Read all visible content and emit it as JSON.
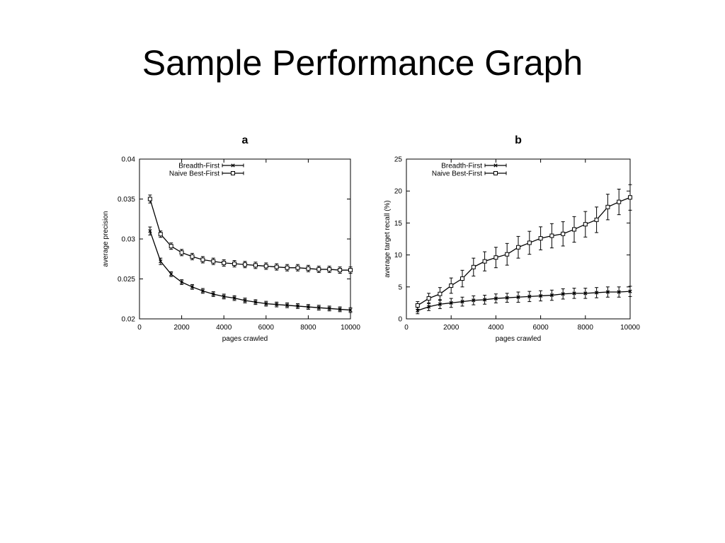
{
  "slide": {
    "title": "Sample Performance Graph"
  },
  "chart_data": [
    {
      "type": "line",
      "title": "a",
      "xlabel": "pages crawled",
      "ylabel": "average precision",
      "xlim": [
        0,
        10000
      ],
      "ylim": [
        0.02,
        0.04
      ],
      "xticks": [
        0,
        2000,
        4000,
        6000,
        8000,
        10000
      ],
      "yticks": [
        0.02,
        0.025,
        0.03,
        0.035,
        0.04
      ],
      "xtick_labels": [
        "0",
        "2000",
        "4000",
        "6000",
        "8000",
        "10000"
      ],
      "ytick_labels": [
        "0.02",
        "0.025",
        "0.03",
        "0.035",
        "0.04"
      ],
      "legend": "top-right",
      "grid": false,
      "x": [
        500,
        1000,
        1500,
        2000,
        2500,
        3000,
        3500,
        4000,
        4500,
        5000,
        5500,
        6000,
        6500,
        7000,
        7500,
        8000,
        8500,
        9000,
        9500,
        10000
      ],
      "series": [
        {
          "name": "Breadth-First",
          "marker": "x",
          "values": [
            0.031,
            0.0272,
            0.0256,
            0.0246,
            0.024,
            0.0235,
            0.0231,
            0.0228,
            0.0226,
            0.0223,
            0.0221,
            0.0219,
            0.0218,
            0.0217,
            0.0216,
            0.0215,
            0.0214,
            0.0213,
            0.0212,
            0.0211
          ],
          "errors": [
            0.0005,
            0.0004,
            0.0003,
            0.0003,
            0.0003,
            0.0003,
            0.0003,
            0.0003,
            0.0003,
            0.0003,
            0.0003,
            0.0003,
            0.0003,
            0.0003,
            0.0003,
            0.0003,
            0.0003,
            0.0003,
            0.0003,
            0.0003
          ]
        },
        {
          "name": "Naive Best-First",
          "marker": "square",
          "values": [
            0.035,
            0.0306,
            0.0291,
            0.0283,
            0.0278,
            0.0274,
            0.0272,
            0.027,
            0.0269,
            0.0268,
            0.0267,
            0.0266,
            0.0265,
            0.0264,
            0.0264,
            0.0263,
            0.0262,
            0.0262,
            0.0261,
            0.0261
          ],
          "errors": [
            0.0005,
            0.0004,
            0.0004,
            0.0004,
            0.0004,
            0.0004,
            0.0004,
            0.0004,
            0.0004,
            0.0004,
            0.0004,
            0.0004,
            0.0004,
            0.0004,
            0.0004,
            0.0004,
            0.0004,
            0.0004,
            0.0004,
            0.0004
          ]
        }
      ]
    },
    {
      "type": "line",
      "title": "b",
      "xlabel": "pages crawled",
      "ylabel": "average target recall (%)",
      "xlim": [
        0,
        10000
      ],
      "ylim": [
        0,
        25
      ],
      "xticks": [
        0,
        2000,
        4000,
        6000,
        8000,
        10000
      ],
      "yticks": [
        0,
        5,
        10,
        15,
        20,
        25
      ],
      "xtick_labels": [
        "0",
        "2000",
        "4000",
        "6000",
        "8000",
        "10000"
      ],
      "ytick_labels": [
        "0",
        "5",
        "10",
        "15",
        "20",
        "25"
      ],
      "legend": "top-left",
      "grid": false,
      "x": [
        500,
        1000,
        1500,
        2000,
        2500,
        3000,
        3500,
        4000,
        4500,
        5000,
        5500,
        6000,
        6500,
        7000,
        7500,
        8000,
        8500,
        9000,
        9500,
        10000
      ],
      "series": [
        {
          "name": "Breadth-First",
          "marker": "x",
          "values": [
            1.3,
            1.9,
            2.3,
            2.5,
            2.7,
            2.9,
            3.0,
            3.2,
            3.3,
            3.4,
            3.5,
            3.6,
            3.7,
            3.9,
            4.0,
            4.0,
            4.1,
            4.2,
            4.2,
            4.3
          ],
          "errors": [
            0.5,
            0.6,
            0.7,
            0.7,
            0.7,
            0.7,
            0.7,
            0.7,
            0.7,
            0.8,
            0.8,
            0.8,
            0.8,
            0.8,
            0.8,
            0.8,
            0.8,
            0.8,
            0.8,
            0.8
          ]
        },
        {
          "name": "Naive Best-First",
          "marker": "square",
          "values": [
            2.1,
            3.2,
            3.9,
            5.2,
            6.3,
            8.1,
            9.0,
            9.6,
            10.1,
            11.2,
            11.9,
            12.6,
            13.0,
            13.3,
            14.0,
            14.8,
            15.5,
            17.5,
            18.3,
            19.0
          ],
          "errors": [
            0.6,
            0.8,
            1.0,
            1.2,
            1.3,
            1.4,
            1.5,
            1.6,
            1.7,
            1.7,
            1.8,
            1.8,
            1.9,
            1.9,
            2.0,
            2.0,
            2.0,
            2.0,
            2.0,
            2.0
          ]
        }
      ]
    }
  ]
}
